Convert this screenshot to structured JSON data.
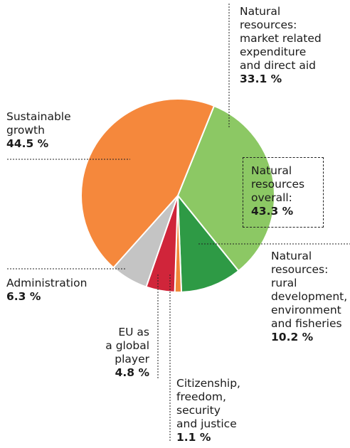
{
  "chart_data": {
    "type": "pie",
    "slices": [
      {
        "key": "natural_market",
        "label_lines": [
          "Natural",
          "resources:",
          "market related",
          "expenditure",
          "and direct aid"
        ],
        "value": 33.1,
        "value_label": "33.1 %",
        "color": "#8cc864"
      },
      {
        "key": "natural_rural",
        "label_lines": [
          "Natural",
          "resources:",
          "rural",
          "development,",
          "environment",
          "and fisheries"
        ],
        "value": 10.2,
        "value_label": "10.2 %",
        "color": "#2e9a45"
      },
      {
        "key": "citizenship",
        "label_lines": [
          "Citizenship,",
          "freedom,",
          "security",
          "and justice"
        ],
        "value": 1.1,
        "value_label": "1.1 %",
        "color": "#f08838"
      },
      {
        "key": "eu_global",
        "label_lines": [
          "EU as",
          "a global",
          "player"
        ],
        "value": 4.8,
        "value_label": "4.8 %",
        "color": "#d0253a"
      },
      {
        "key": "administration",
        "label_lines": [
          "Administration"
        ],
        "value": 6.3,
        "value_label": "6.3 %",
        "color": "#c4c4c4"
      },
      {
        "key": "sustainable",
        "label_lines": [
          "Sustainable",
          "growth"
        ],
        "value": 44.5,
        "value_label": "44.5 %",
        "color": "#f5883c"
      }
    ],
    "annotation": {
      "label_lines": [
        "Natural",
        "resources",
        "overall:"
      ],
      "value_label": "43.3 %"
    }
  }
}
